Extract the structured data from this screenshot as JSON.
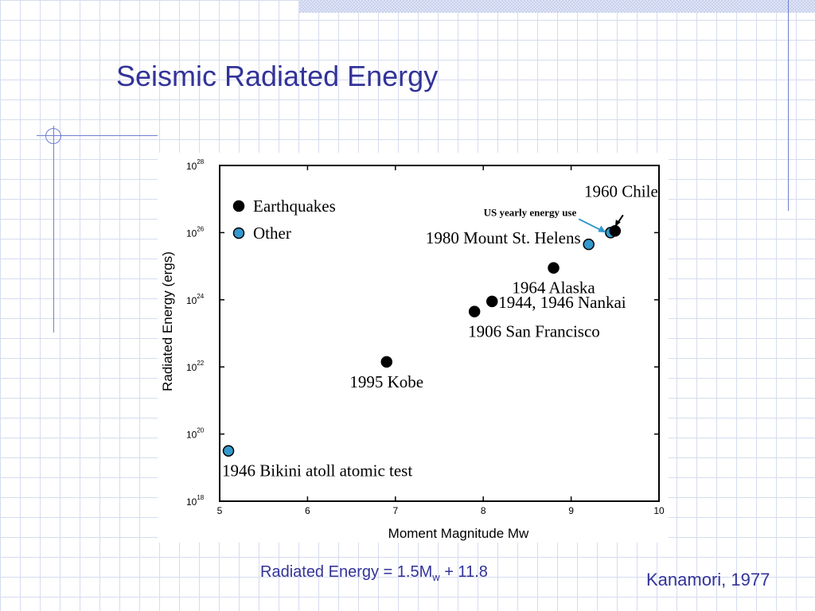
{
  "slide": {
    "title": "Seismic Radiated Energy",
    "formula": {
      "prefix": "Radiated Energy = 1.5M",
      "subscript": "w",
      "suffix": " + 11.8"
    },
    "citation": "Kanamori, 1977"
  },
  "colors": {
    "title": "#333399",
    "earthquake_marker": "#000000",
    "other_marker": "#3399cc",
    "arrow": "#3399cc",
    "grid": "#d6dcef"
  },
  "chart_data": {
    "type": "scatter",
    "xlabel": "Moment Magnitude Mw",
    "ylabel": "Radiated Energy (ergs)",
    "x_scale": "linear",
    "y_scale": "log",
    "xlim": [
      5,
      10
    ],
    "ylim_log10": [
      18,
      28
    ],
    "x_ticks": [
      "5",
      "6",
      "7",
      "8",
      "9",
      "10"
    ],
    "y_ticks": [
      {
        "base": "10",
        "exp": "18"
      },
      {
        "base": "10",
        "exp": "20"
      },
      {
        "base": "10",
        "exp": "22"
      },
      {
        "base": "10",
        "exp": "24"
      },
      {
        "base": "10",
        "exp": "26"
      },
      {
        "base": "10",
        "exp": "28"
      }
    ],
    "legend_position": "top-left",
    "legend": [
      {
        "label": "Earthquakes",
        "type": "earthquake"
      },
      {
        "label": "Other",
        "type": "other"
      }
    ],
    "points": [
      {
        "label": "1946 Bikini atoll atomic test",
        "mw": 5.1,
        "log10_energy": 19.5,
        "type": "other",
        "label_anchor": "below-right"
      },
      {
        "label": "1995 Kobe",
        "mw": 6.9,
        "log10_energy": 22.15,
        "type": "earthquake",
        "label_anchor": "below"
      },
      {
        "label": "1906 San Francisco",
        "mw": 7.9,
        "log10_energy": 23.65,
        "type": "earthquake",
        "label_anchor": "below-right"
      },
      {
        "label": "1944, 1946 Nankai",
        "mw": 8.1,
        "log10_energy": 23.95,
        "type": "earthquake",
        "label_anchor": "right"
      },
      {
        "label": "1964 Alaska",
        "mw": 8.8,
        "log10_energy": 24.95,
        "type": "earthquake",
        "label_anchor": "below"
      },
      {
        "label": "1980 Mount St. Helens",
        "mw": 9.2,
        "log10_energy": 25.65,
        "type": "other",
        "label_anchor": "left"
      },
      {
        "label": "US yearly energy use",
        "mw": 9.45,
        "log10_energy": 26.0,
        "type": "other",
        "label_anchor": "arrow-from-upper-left"
      },
      {
        "label": "1960 Chile",
        "mw": 9.5,
        "log10_energy": 26.05,
        "type": "earthquake",
        "label_anchor": "arrow-from-above"
      }
    ]
  }
}
